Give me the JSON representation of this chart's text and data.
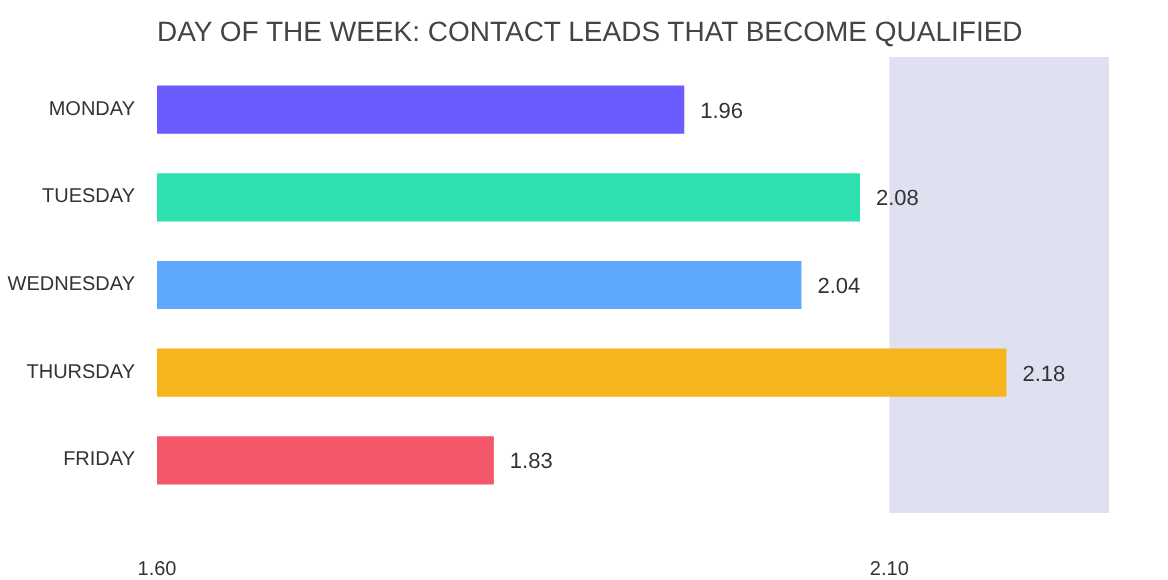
{
  "chart_data": {
    "type": "bar",
    "orientation": "horizontal",
    "title": "DAY OF THE WEEK: CONTACT LEADS THAT BECOME QUALIFIED",
    "categories": [
      "MONDAY",
      "TUESDAY",
      "WEDNESDAY",
      "THURSDAY",
      "FRIDAY"
    ],
    "values": [
      1.96,
      2.08,
      2.04,
      2.18,
      1.83
    ],
    "colors": [
      "#6a5cff",
      "#2de0b0",
      "#5ea8ff",
      "#f5b51c",
      "#f4566a"
    ],
    "xlim": [
      1.6,
      2.25
    ],
    "xticks": [
      {
        "value": 1.6,
        "label": "1.60"
      },
      {
        "value": 2.1,
        "label": "2.10"
      }
    ],
    "bands": [
      {
        "axis": "x",
        "from": 2.1,
        "to": 2.25,
        "color": "#dfe1f0"
      }
    ],
    "data_labels": true,
    "grid": false
  }
}
